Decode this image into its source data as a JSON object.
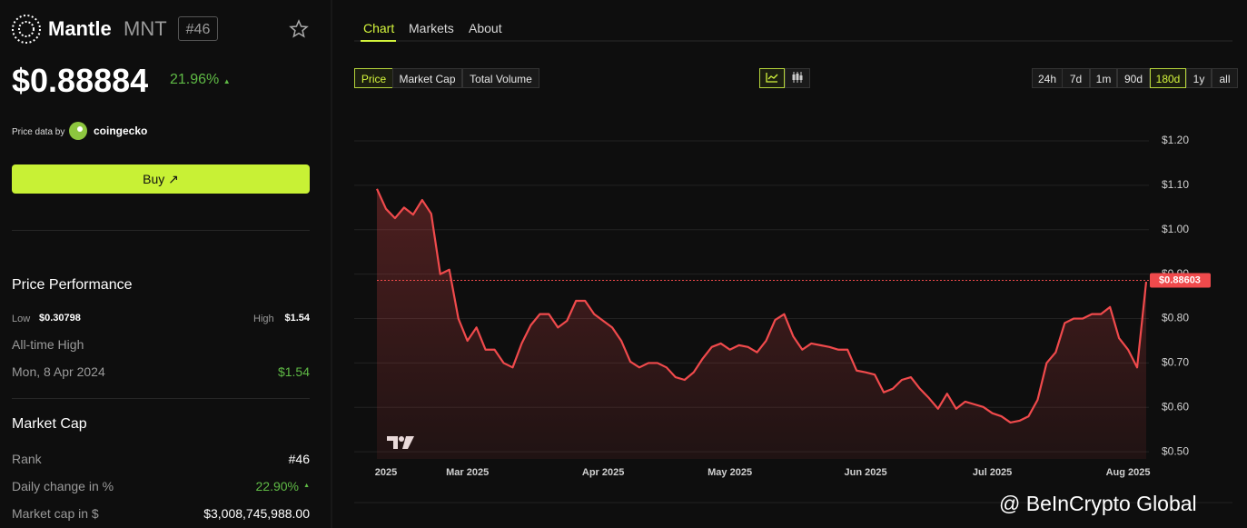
{
  "header": {
    "name": "Mantle",
    "symbol": "MNT",
    "rank": "#46",
    "price": "$0.88884",
    "change": "21.96%"
  },
  "source": {
    "label": "Price data by",
    "provider": "coingecko"
  },
  "buy": "Buy",
  "performance": {
    "title": "Price Performance",
    "low_label": "Low",
    "low": "$0.30798",
    "high_label": "High",
    "high": "$1.54",
    "ath_label": "All-time High",
    "ath_date": "Mon, 8 Apr 2024",
    "ath": "$1.54"
  },
  "market_cap": {
    "title": "Market Cap",
    "rows": [
      [
        "Rank",
        "#46"
      ],
      [
        "Daily change in %",
        "22.90%"
      ],
      [
        "Market cap in $",
        "$3,008,745,988.00"
      ]
    ]
  },
  "tabs": [
    "Chart",
    "Markets",
    "About"
  ],
  "metrics": [
    "Price",
    "Market Cap",
    "Total Volume"
  ],
  "ranges": [
    "24h",
    "7d",
    "1m",
    "90d",
    "180d",
    "1y",
    "all"
  ],
  "watermark": "@ BeInCrypto Global",
  "chart_data": {
    "type": "line",
    "color": "#f04a4c",
    "categories": [
      null,
      "2025",
      null,
      null,
      null,
      null,
      null,
      null,
      null,
      null,
      "Mar 2025",
      null,
      null,
      null,
      null,
      null,
      null,
      null,
      null,
      null,
      null,
      null,
      null,
      null,
      null,
      "Apr 2025",
      null,
      null,
      null,
      null,
      null,
      null,
      null,
      null,
      null,
      null,
      null,
      null,
      null,
      "May 2025",
      null,
      null,
      null,
      null,
      null,
      null,
      null,
      null,
      null,
      null,
      null,
      null,
      null,
      null,
      "Jun 2025",
      null,
      null,
      null,
      null,
      null,
      null,
      null,
      null,
      null,
      null,
      null,
      null,
      null,
      "Jul 2025",
      null,
      null,
      null,
      null,
      null,
      null,
      null,
      null,
      null,
      null,
      null,
      null,
      null,
      null,
      "Aug 2025",
      null,
      null
    ],
    "values": [
      1.092,
      1.047,
      1.026,
      1.05,
      1.034,
      1.067,
      1.036,
      0.9,
      0.91,
      0.8,
      0.75,
      0.78,
      0.73,
      0.73,
      0.7,
      0.69,
      0.744,
      0.785,
      0.81,
      0.81,
      0.78,
      0.795,
      0.84,
      0.84,
      0.81,
      0.795,
      0.78,
      0.75,
      0.703,
      0.69,
      0.7,
      0.7,
      0.69,
      0.668,
      0.662,
      0.679,
      0.71,
      0.736,
      0.744,
      0.73,
      0.74,
      0.736,
      0.724,
      0.75,
      0.797,
      0.81,
      0.76,
      0.73,
      0.744,
      0.74,
      0.736,
      0.73,
      0.73,
      0.683,
      0.679,
      0.674,
      0.634,
      0.642,
      0.662,
      0.668,
      0.642,
      0.621,
      0.597,
      0.631,
      0.597,
      0.613,
      0.607,
      0.601,
      0.587,
      0.58,
      0.566,
      0.57,
      0.58,
      0.617,
      0.7,
      0.724,
      0.79,
      0.8,
      0.8,
      0.81,
      0.81,
      0.826,
      0.756,
      0.73,
      0.69,
      0.883
    ],
    "current": {
      "value": 0.88603,
      "label": "$0.88603"
    },
    "ylim": [
      0.484,
      1.241
    ],
    "yticks": [
      {
        "value": 0.5,
        "label": "$0.50"
      },
      {
        "value": 0.6,
        "label": "$0.60"
      },
      {
        "value": 0.7,
        "label": "$0.70"
      },
      {
        "value": 0.8,
        "label": "$0.80"
      },
      {
        "value": 0.9,
        "label": "$0.90"
      },
      {
        "value": 1.0,
        "label": "$1.00"
      },
      {
        "value": 1.1,
        "label": "$1.10"
      },
      {
        "value": 1.2,
        "label": "$1.20"
      }
    ],
    "grid": true
  }
}
